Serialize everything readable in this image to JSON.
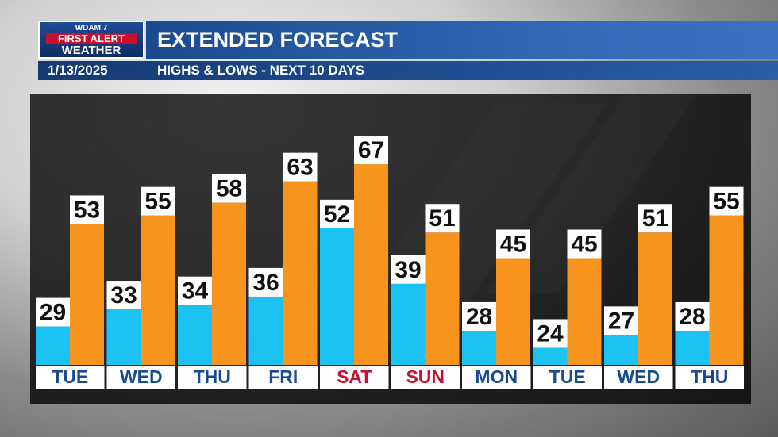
{
  "header": {
    "logo": {
      "line1": "WDAM 7",
      "line2": "FIRST ALERT",
      "line3": "WEATHER"
    },
    "title": "EXTENDED FORECAST",
    "date": "1/13/2025",
    "subtitle": "HIGHS & LOWS - NEXT 10 DAYS"
  },
  "colors": {
    "low_bar": "#1cc3f2",
    "high_bar": "#f7941d",
    "weekday_label": "#1b4a8f",
    "weekend_label": "#c8102e"
  },
  "chart_data": {
    "type": "bar",
    "title": "HIGHS & LOWS - NEXT 10 DAYS",
    "categories": [
      "TUE",
      "WED",
      "THU",
      "FRI",
      "SAT",
      "SUN",
      "MON",
      "TUE",
      "WED",
      "THU"
    ],
    "weekend": [
      false,
      false,
      false,
      false,
      true,
      true,
      false,
      false,
      false,
      false
    ],
    "series": [
      {
        "values": [
          29,
          33,
          34,
          36,
          52,
          39,
          28,
          24,
          27,
          28
        ]
      },
      {
        "values": [
          53,
          55,
          58,
          63,
          67,
          51,
          45,
          45,
          51,
          55
        ]
      }
    ],
    "ylim": [
      20,
      70
    ],
    "grid": false,
    "legend": "none"
  }
}
